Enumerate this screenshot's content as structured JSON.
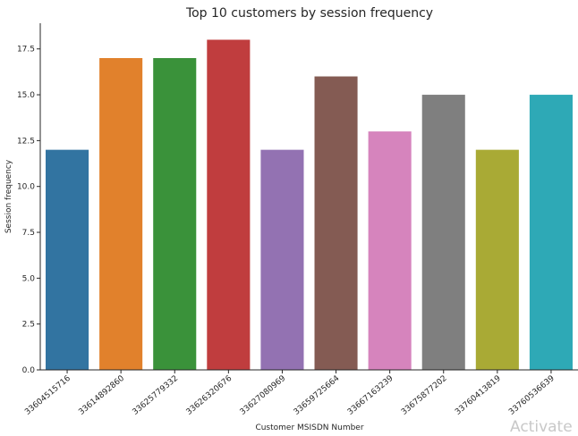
{
  "chart_data": {
    "type": "bar",
    "title": "Top 10 customers by session frequency",
    "xlabel": "Customer MSISDN Number",
    "ylabel": "Session frequency",
    "categories": [
      "33604515716",
      "33614892860",
      "33625779332",
      "33626320676",
      "33627080969",
      "33659725664",
      "33667163239",
      "33675877202",
      "33760413819",
      "33760536639"
    ],
    "values": [
      12,
      17,
      17,
      18,
      12,
      16,
      13,
      15,
      12,
      15
    ],
    "colors": [
      "#3274a1",
      "#e1812c",
      "#3a923a",
      "#c03d3e",
      "#9372b2",
      "#845b53",
      "#d684bd",
      "#7f7f7f",
      "#a9aa35",
      "#2ea9b6"
    ],
    "ylim": [
      0,
      18.9
    ],
    "yticks": [
      0.0,
      2.5,
      5.0,
      7.5,
      10.0,
      12.5,
      15.0,
      17.5
    ],
    "grid": false,
    "legend": "none"
  },
  "watermark": "Activate"
}
